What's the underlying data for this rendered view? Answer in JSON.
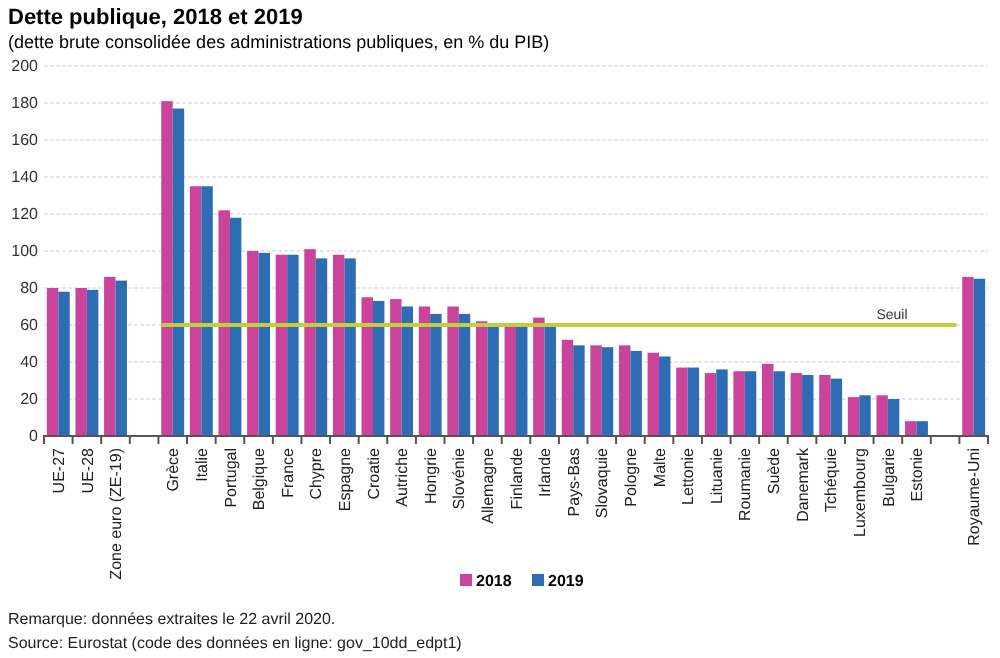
{
  "chart_data": {
    "type": "bar",
    "title": "Dette publique, 2018 et 2019",
    "subtitle": "(dette brute consolidée des administrations publiques, en % du PIB)",
    "categories": [
      "UE-27",
      "UE-28",
      "Zone euro (ZE-19)",
      null,
      "Grèce",
      "Italie",
      "Portugal",
      "Belgique",
      "France",
      "Chypre",
      "Espagne",
      "Croatie",
      "Autriche",
      "Hongrie",
      "Slovénie",
      "Allemagne",
      "Finlande",
      "Irlande",
      "Pays-Bas",
      "Slovaquie",
      "Pologne",
      "Malte",
      "Lettonie",
      "Lituanie",
      "Roumanie",
      "Suède",
      "Danemark",
      "Tchéquie",
      "Luxembourg",
      "Bulgarie",
      "Estonie",
      null,
      "Royaume-Uni"
    ],
    "series": [
      {
        "name": "2018",
        "color": "#c9449a",
        "values": [
          80,
          80,
          86,
          null,
          181,
          135,
          122,
          100,
          98,
          101,
          98,
          75,
          74,
          70,
          70,
          62,
          60,
          64,
          52,
          49,
          49,
          45,
          37,
          34,
          35,
          39,
          34,
          33,
          21,
          22,
          8,
          null,
          86
        ]
      },
      {
        "name": "2019",
        "color": "#2e6db4",
        "values": [
          78,
          79,
          84,
          null,
          177,
          135,
          118,
          99,
          98,
          96,
          96,
          73,
          70,
          66,
          66,
          60,
          59,
          59,
          49,
          48,
          46,
          43,
          37,
          36,
          35,
          35,
          33,
          31,
          22,
          20,
          8,
          null,
          85
        ]
      }
    ],
    "ylim": [
      0,
      200
    ],
    "yticks": [
      0,
      20,
      40,
      60,
      80,
      100,
      120,
      140,
      160,
      180,
      200
    ],
    "grid": "y",
    "legend": "bottom",
    "ref_lines": [
      {
        "axis": "y",
        "value": 60,
        "label": "Seuil",
        "color": "#c2cf3c"
      }
    ],
    "annotations": [
      "Remarque: données extraites le 22 avril 2020.",
      "Source: Eurostat (code des données en ligne: gov_10dd_edpt1)"
    ]
  }
}
